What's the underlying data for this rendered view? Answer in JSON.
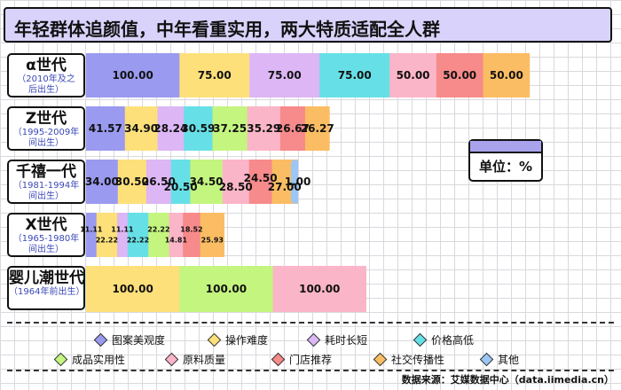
{
  "header": {
    "title": "年轻群体追颜值，中年看重实用，两大特质适配全人群"
  },
  "unit_label": "单位：%",
  "source": "数据来源：艾媒数据中心（data.iimedia.cn）",
  "colors": {
    "图案美观度": "#9a9af0",
    "操作难度": "#fde07a",
    "耗时长短": "#dcb6f5",
    "价格高低": "#66e0e6",
    "成品实用性": "#c4f57f",
    "原料质量": "#fbb5c8",
    "门店推荐": "#f78a8a",
    "社交传播性": "#fbbd63",
    "其他": "#9cc6f5"
  },
  "chart_data": {
    "type": "bar",
    "orientation": "horizontal",
    "stacked": true,
    "categories": [
      {
        "name": "α世代",
        "range": "（2010年及之\n后出生）"
      },
      {
        "name": "Z世代",
        "range": "（1995-2009年\n间出生）"
      },
      {
        "name": "千禧一代",
        "range": "（1981-1994年\n间出生）"
      },
      {
        "name": "X世代",
        "range": "（1965-1980年\n间出生）"
      },
      {
        "name": "婴儿潮世代",
        "range": "（1964年前出生）"
      }
    ],
    "series": [
      {
        "name": "图案美观度",
        "values": [
          100.0,
          41.57,
          34.0,
          11.11,
          0
        ]
      },
      {
        "name": "操作难度",
        "values": [
          75.0,
          34.9,
          30.5,
          22.22,
          100.0
        ]
      },
      {
        "name": "耗时长短",
        "values": [
          75.0,
          28.24,
          26.5,
          11.11,
          0
        ]
      },
      {
        "name": "价格高低",
        "values": [
          75.0,
          30.59,
          20.5,
          22.22,
          0
        ]
      },
      {
        "name": "成品实用性",
        "values": [
          0,
          37.25,
          34.5,
          22.22,
          100.0
        ]
      },
      {
        "name": "原料质量",
        "values": [
          50.0,
          35.29,
          28.5,
          14.81,
          100.0
        ]
      },
      {
        "name": "门店推荐",
        "values": [
          50.0,
          26.67,
          24.5,
          18.52,
          0
        ]
      },
      {
        "name": "社交传播性",
        "values": [
          50.0,
          26.27,
          27.0,
          25.93,
          0
        ]
      },
      {
        "name": "其他",
        "values": [
          0,
          0,
          1.0,
          0,
          0
        ]
      }
    ],
    "value_labels": [
      [
        "100.00",
        "75.00",
        "75.00",
        "75.00",
        "",
        "50.00",
        "50.00",
        "50.00",
        ""
      ],
      [
        "41.57",
        "34.90",
        "28.24",
        "30.59",
        "37.25",
        "35.29",
        "26.67",
        "26.27",
        ""
      ],
      [
        "34.00",
        "30.50",
        "26.50",
        "20.50",
        "34.50",
        "28.50",
        "24.50",
        "27.00",
        "1.00"
      ],
      [
        "11.11",
        "22.22",
        "11.11",
        "22.22",
        "22.22",
        "14.81",
        "18.52",
        "25.93",
        ""
      ],
      [
        "",
        "100.00",
        "",
        "",
        "100.00",
        "100.00",
        "",
        "",
        ""
      ]
    ],
    "legend_position": "bottom",
    "grid": true
  }
}
